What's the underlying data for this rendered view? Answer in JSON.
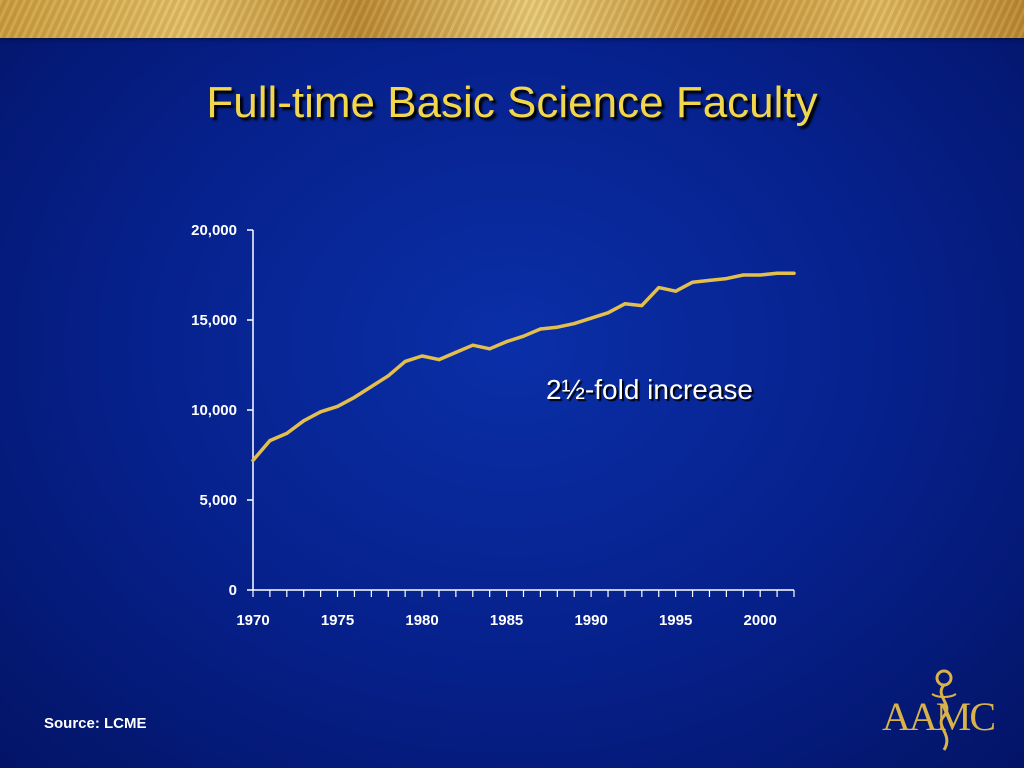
{
  "slide": {
    "title": "Full-time Basic Science Faculty",
    "source": "Source: LCME",
    "logo_text": "AAMC"
  },
  "colors": {
    "title": "#f2d64b",
    "line": "#e3bf4e",
    "axis": "#ffffff"
  },
  "chart_data": {
    "type": "line",
    "annotation": "2½-fold increase",
    "xlim": [
      1970,
      2002
    ],
    "ylim": [
      0,
      20000
    ],
    "xticks": [
      1970,
      1975,
      1980,
      1985,
      1990,
      1995,
      2000
    ],
    "xtick_labels": [
      "1970",
      "1975",
      "1980",
      "1985",
      "1990",
      "1995",
      "2000"
    ],
    "yticks": [
      0,
      5000,
      10000,
      15000,
      20000
    ],
    "ytick_labels": [
      "0",
      "5,000",
      "10,000",
      "15,000",
      "20,000"
    ],
    "grid": false,
    "series": [
      {
        "x": [
          1970,
          1971,
          1972,
          1973,
          1974,
          1975,
          1976,
          1977,
          1978,
          1979,
          1980,
          1981,
          1982,
          1983,
          1984,
          1985,
          1986,
          1987,
          1988,
          1989,
          1990,
          1991,
          1992,
          1993,
          1994,
          1995,
          1996,
          1997,
          1998,
          1999,
          2000,
          2001,
          2002
        ],
        "y": [
          7200,
          8300,
          8700,
          9400,
          9900,
          10200,
          10700,
          11300,
          11900,
          12700,
          13000,
          12800,
          13200,
          13600,
          13400,
          13800,
          14100,
          14500,
          14600,
          14800,
          15100,
          15400,
          15900,
          15800,
          16800,
          16600,
          17100,
          17200,
          17300,
          17500,
          17500,
          17600,
          17600
        ]
      }
    ]
  }
}
